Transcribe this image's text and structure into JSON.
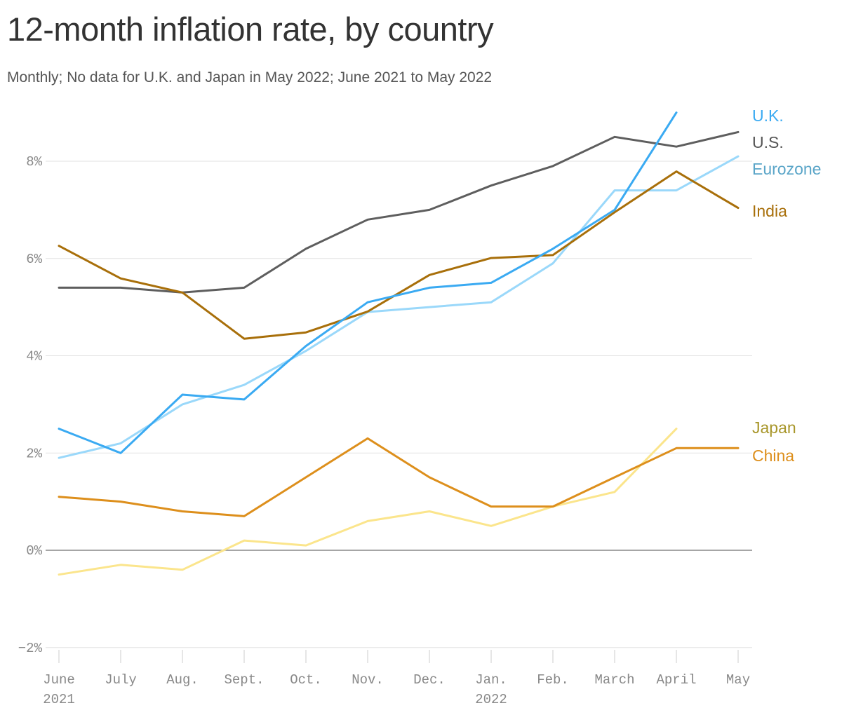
{
  "title": "12-month inflation rate, by country",
  "subtitle": "Monthly; No data for U.K. and Japan in May 2022; June 2021 to May 2022",
  "chart_data": {
    "type": "line",
    "title": "12-month inflation rate, by country",
    "subtitle": "Monthly; No data for U.K. and Japan in May 2022; June 2021 to May 2022",
    "categories": [
      "June",
      "July",
      "Aug.",
      "Sept.",
      "Oct.",
      "Nov.",
      "Dec.",
      "Jan.",
      "Feb.",
      "March",
      "April",
      "May"
    ],
    "year_labels": [
      "2021",
      "",
      "",
      "",
      "",
      "",
      "",
      "2022",
      "",
      "",
      "",
      ""
    ],
    "ylim": [
      -2,
      9
    ],
    "y_ticks": [
      {
        "value": -2,
        "label": "−2%"
      },
      {
        "value": 0,
        "label": "0%"
      },
      {
        "value": 2,
        "label": "2%"
      },
      {
        "value": 4,
        "label": "4%"
      },
      {
        "value": 6,
        "label": "6%"
      },
      {
        "value": 8,
        "label": "8%"
      }
    ],
    "grid": true,
    "series": [
      {
        "name": "U.S.",
        "color": "#5e5e5e",
        "label_color": "#555555",
        "values": [
          5.4,
          5.4,
          5.3,
          5.4,
          6.2,
          6.8,
          7.0,
          7.5,
          7.9,
          8.5,
          8.3,
          8.6
        ]
      },
      {
        "name": "Eurozone",
        "color": "#9ad8fa",
        "label_color": "#5aa5c8",
        "values": [
          1.9,
          2.2,
          3.0,
          3.4,
          4.1,
          4.9,
          5.0,
          5.1,
          5.9,
          7.4,
          7.4,
          8.1
        ]
      },
      {
        "name": "India",
        "color": "#a86f0a",
        "label_color": "#a86f0a",
        "values": [
          6.26,
          5.59,
          5.3,
          4.35,
          4.48,
          4.91,
          5.66,
          6.01,
          6.07,
          6.95,
          7.79,
          7.04
        ]
      },
      {
        "name": "U.K.",
        "color": "#3aaaf2",
        "label_color": "#3aaaf2",
        "values": [
          2.5,
          2.0,
          3.2,
          3.1,
          4.2,
          5.1,
          5.4,
          5.5,
          6.2,
          7.0,
          9.0,
          null
        ]
      },
      {
        "name": "Japan",
        "color": "#fbe58c",
        "label_color": "#a8962a",
        "values": [
          -0.5,
          -0.3,
          -0.4,
          0.2,
          0.1,
          0.6,
          0.8,
          0.5,
          0.9,
          1.2,
          2.5,
          null
        ]
      },
      {
        "name": "China",
        "color": "#dd8f1c",
        "label_color": "#dd8f1c",
        "values": [
          1.1,
          1.0,
          0.8,
          0.7,
          1.5,
          2.3,
          1.5,
          0.9,
          0.9,
          1.5,
          2.1,
          2.1
        ]
      }
    ]
  }
}
